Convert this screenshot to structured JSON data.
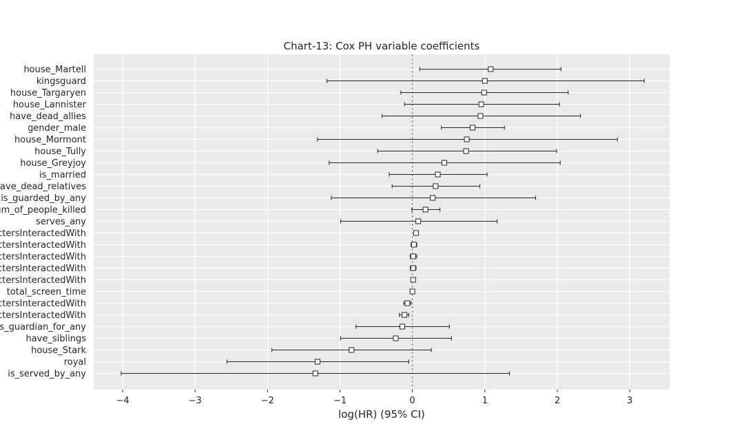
{
  "chart_data": {
    "type": "scatter",
    "title": "Chart-13: Cox PH variable coefficients",
    "xlabel": "log(HR) (95% CI)",
    "ylabel": "",
    "xlim": [
      -4.4,
      3.55
    ],
    "xticks": [
      -4,
      -3,
      -2,
      -1,
      0,
      1,
      2,
      3
    ],
    "xtick_labels": [
      "−4",
      "−3",
      "−2",
      "−1",
      "0",
      "1",
      "2",
      "3"
    ],
    "grid": true,
    "reference_line_x": 0,
    "series": [
      {
        "points": [
          {
            "label": "house_Martell",
            "coef": 1.08,
            "lower": 0.1,
            "upper": 2.05
          },
          {
            "label": "kingsguard",
            "coef": 1.0,
            "lower": -1.18,
            "upper": 3.2
          },
          {
            "label": "house_Targaryen",
            "coef": 0.99,
            "lower": -0.16,
            "upper": 2.15
          },
          {
            "label": "house_Lannister",
            "coef": 0.95,
            "lower": -0.11,
            "upper": 2.03
          },
          {
            "label": "have_dead_allies",
            "coef": 0.94,
            "lower": -0.42,
            "upper": 2.32
          },
          {
            "label": "gender_male",
            "coef": 0.83,
            "lower": 0.4,
            "upper": 1.27
          },
          {
            "label": "house_Mormont",
            "coef": 0.75,
            "lower": -1.31,
            "upper": 2.83
          },
          {
            "label": "house_Tully",
            "coef": 0.74,
            "lower": -0.48,
            "upper": 1.99
          },
          {
            "label": "house_Greyjoy",
            "coef": 0.44,
            "lower": -1.15,
            "upper": 2.04
          },
          {
            "label": "is_married",
            "coef": 0.35,
            "lower": -0.32,
            "upper": 1.03
          },
          {
            "label": "have_dead_relatives",
            "coef": 0.32,
            "lower": -0.28,
            "upper": 0.93
          },
          {
            "label": "is_guarded_by_any",
            "coef": 0.28,
            "lower": -1.12,
            "upper": 1.7
          },
          {
            "label": "num_of_people_killed",
            "coef": 0.18,
            "lower": -0.01,
            "upper": 0.38
          },
          {
            "label": "serves_any",
            "coef": 0.08,
            "lower": -0.99,
            "upper": 1.17
          },
          {
            "label": "charactersInteractedWith",
            "coef": 0.05,
            "lower": 0.04,
            "upper": 0.07
          },
          {
            "label": "charactersInteractedWith",
            "coef": 0.02,
            "lower": -0.02,
            "upper": 0.06
          },
          {
            "label": "charactersInteractedWith",
            "coef": 0.01,
            "lower": -0.03,
            "upper": 0.06
          },
          {
            "label": "charactersInteractedWith",
            "coef": 0.01,
            "lower": -0.03,
            "upper": 0.05
          },
          {
            "label": "charactersInteractedWith",
            "coef": 0.01,
            "lower": -0.01,
            "upper": 0.03
          },
          {
            "label": "total_screen_time",
            "coef": 0.0,
            "lower": -0.01,
            "upper": 0.01
          },
          {
            "label": "charactersInteractedWith",
            "coef": -0.07,
            "lower": -0.12,
            "upper": -0.02
          },
          {
            "label": "charactersInteractedWith",
            "coef": -0.11,
            "lower": -0.18,
            "upper": -0.05
          },
          {
            "label": "is_guardian_for_any",
            "coef": -0.14,
            "lower": -0.78,
            "upper": 0.51
          },
          {
            "label": "have_siblings",
            "coef": -0.23,
            "lower": -0.99,
            "upper": 0.54
          },
          {
            "label": "house_Stark",
            "coef": -0.84,
            "lower": -1.94,
            "upper": 0.26
          },
          {
            "label": "royal",
            "coef": -1.31,
            "lower": -2.56,
            "upper": -0.05
          },
          {
            "label": "is_served_by_any",
            "coef": -1.34,
            "lower": -4.02,
            "upper": 1.34
          }
        ]
      }
    ]
  }
}
